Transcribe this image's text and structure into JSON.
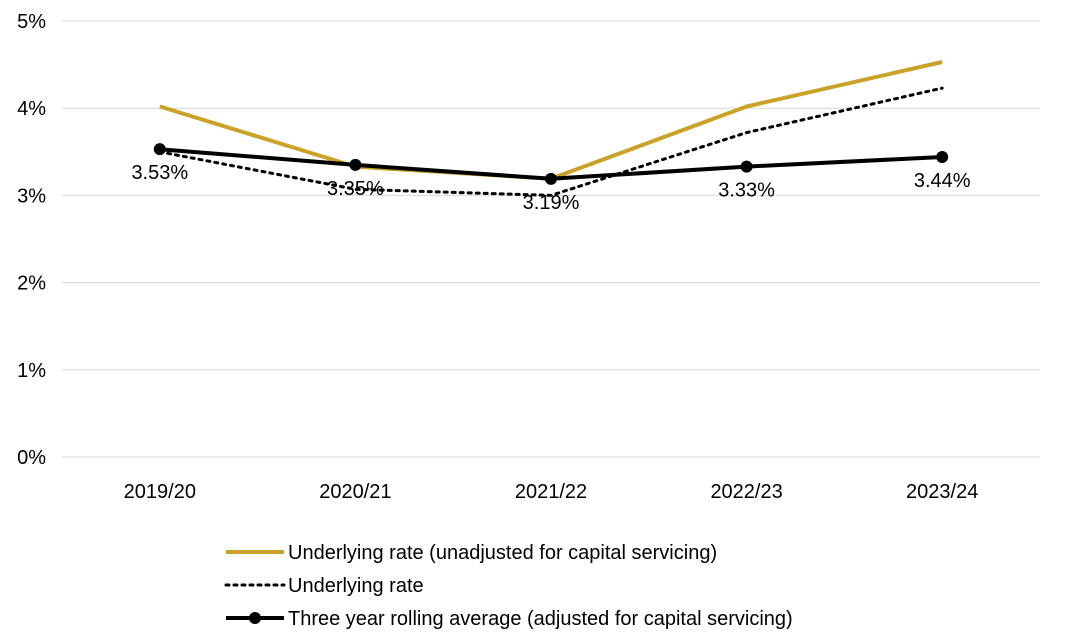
{
  "chart_data": {
    "type": "line",
    "categories": [
      "2019/20",
      "2020/21",
      "2021/22",
      "2022/23",
      "2023/24"
    ],
    "y_ticks": [
      "0%",
      "1%",
      "2%",
      "3%",
      "4%",
      "5%"
    ],
    "ylim": [
      0,
      5
    ],
    "grid": true,
    "legend_position": "bottom",
    "series": [
      {
        "name": "Underlying rate (unadjusted for capital servicing)",
        "values": [
          4.02,
          3.33,
          3.19,
          4.02,
          4.53
        ],
        "color": "#c9a227",
        "style": "solid"
      },
      {
        "name": "Underlying rate",
        "values": [
          3.5,
          3.07,
          3.0,
          3.72,
          4.23
        ],
        "color": "#000000",
        "style": "dotted"
      },
      {
        "name": "Three year rolling average (adjusted for capital servicing)",
        "values": [
          3.53,
          3.35,
          3.19,
          3.33,
          3.44
        ],
        "labels": [
          "3.53%",
          "3.35%",
          "3.19%",
          "3.33%",
          "3.44%"
        ],
        "color": "#000000",
        "style": "solid-markers"
      }
    ]
  }
}
